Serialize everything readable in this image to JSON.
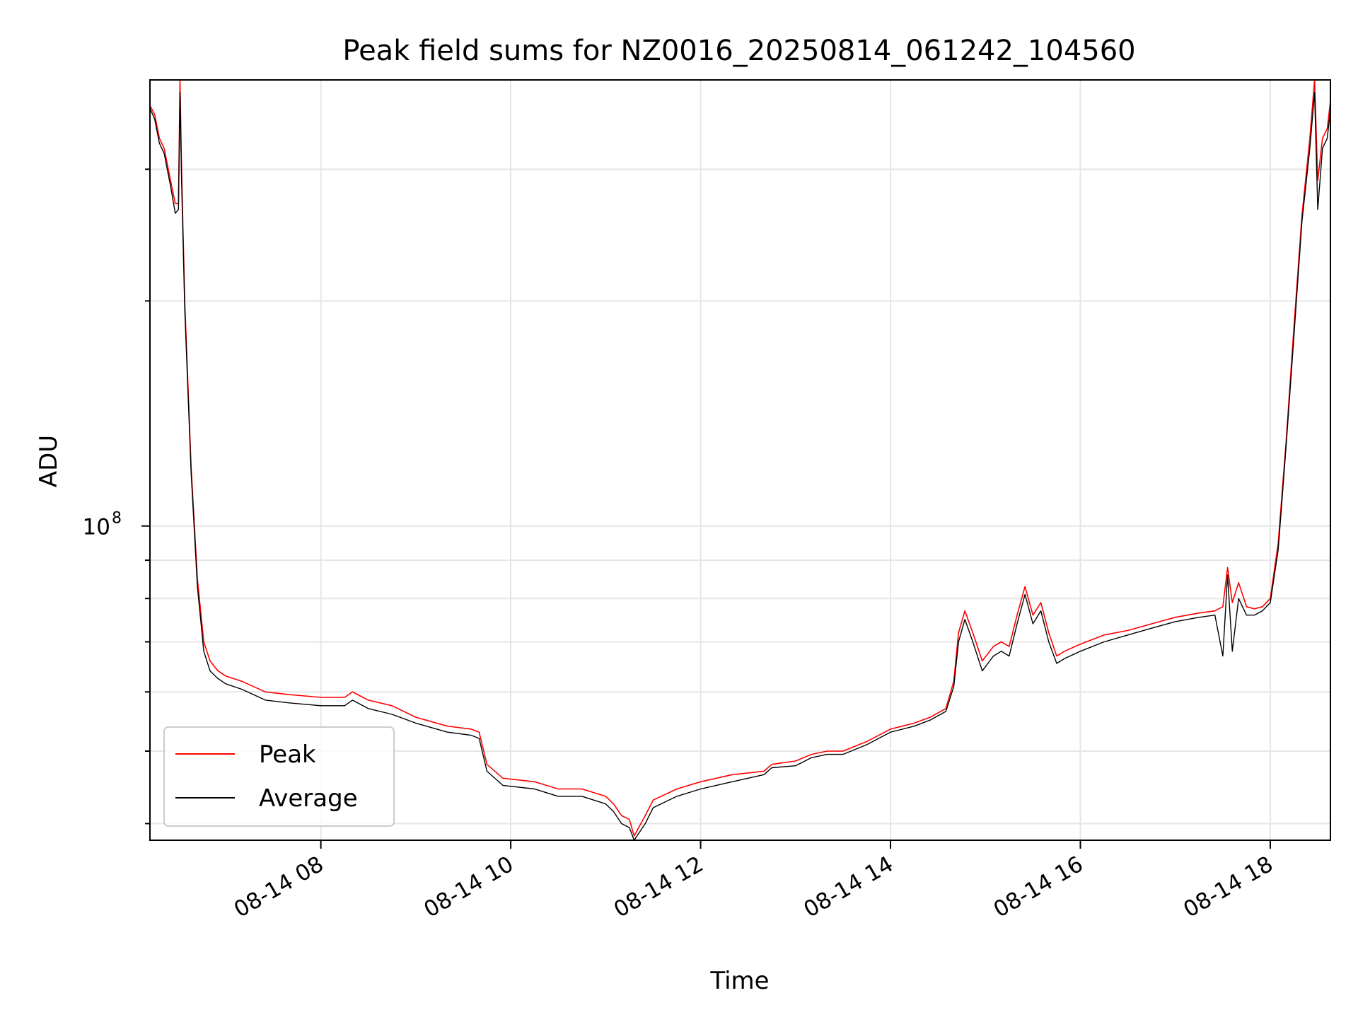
{
  "chart_data": {
    "type": "line",
    "title": "Peak field sums for NZ0016_20250814_061242_104560",
    "xlabel": "Time",
    "ylabel": "ADU",
    "x_scale": "time",
    "y_scale": "log",
    "xlim": [
      "2025-08-14 06:12",
      "2025-08-14 18:38"
    ],
    "ylim": [
      38000000,
      395000000
    ],
    "x_ticks": [
      {
        "value": "2025-08-14 08:00",
        "label": "08-14 08"
      },
      {
        "value": "2025-08-14 10:00",
        "label": "08-14 10"
      },
      {
        "value": "2025-08-14 12:00",
        "label": "08-14 12"
      },
      {
        "value": "2025-08-14 14:00",
        "label": "08-14 14"
      },
      {
        "value": "2025-08-14 16:00",
        "label": "08-14 16"
      },
      {
        "value": "2025-08-14 18:00",
        "label": "08-14 18"
      }
    ],
    "y_major_ticks": [
      {
        "value": 100000000,
        "base": "10",
        "exp": "8"
      }
    ],
    "y_minor_ticks": [
      40000000,
      50000000,
      60000000,
      70000000,
      80000000,
      90000000,
      200000000,
      300000000
    ],
    "grid": true,
    "legend_position": "lower-left",
    "series": [
      {
        "name": "Peak",
        "color": "#ff0000",
        "x": [
          "2025-08-14 06:12",
          "2025-08-14 06:15",
          "2025-08-14 06:18",
          "2025-08-14 06:21",
          "2025-08-14 06:25",
          "2025-08-14 06:28",
          "2025-08-14 06:30",
          "2025-08-14 06:31",
          "2025-08-14 06:32",
          "2025-08-14 06:34",
          "2025-08-14 06:38",
          "2025-08-14 06:42",
          "2025-08-14 06:46",
          "2025-08-14 06:50",
          "2025-08-14 06:55",
          "2025-08-14 07:00",
          "2025-08-14 07:10",
          "2025-08-14 07:25",
          "2025-08-14 07:40",
          "2025-08-14 08:00",
          "2025-08-14 08:15",
          "2025-08-14 08:20",
          "2025-08-14 08:30",
          "2025-08-14 08:45",
          "2025-08-14 09:00",
          "2025-08-14 09:20",
          "2025-08-14 09:35",
          "2025-08-14 09:40",
          "2025-08-14 09:45",
          "2025-08-14 09:55",
          "2025-08-14 10:15",
          "2025-08-14 10:30",
          "2025-08-14 10:45",
          "2025-08-14 11:00",
          "2025-08-14 11:05",
          "2025-08-14 11:10",
          "2025-08-14 11:15",
          "2025-08-14 11:18",
          "2025-08-14 11:25",
          "2025-08-14 11:30",
          "2025-08-14 11:45",
          "2025-08-14 12:00",
          "2025-08-14 12:20",
          "2025-08-14 12:40",
          "2025-08-14 12:45",
          "2025-08-14 13:00",
          "2025-08-14 13:10",
          "2025-08-14 13:20",
          "2025-08-14 13:30",
          "2025-08-14 13:45",
          "2025-08-14 14:00",
          "2025-08-14 14:15",
          "2025-08-14 14:25",
          "2025-08-14 14:35",
          "2025-08-14 14:40",
          "2025-08-14 14:43",
          "2025-08-14 14:47",
          "2025-08-14 14:52",
          "2025-08-14 14:58",
          "2025-08-14 15:05",
          "2025-08-14 15:10",
          "2025-08-14 15:15",
          "2025-08-14 15:20",
          "2025-08-14 15:25",
          "2025-08-14 15:30",
          "2025-08-14 15:35",
          "2025-08-14 15:40",
          "2025-08-14 15:45",
          "2025-08-14 15:50",
          "2025-08-14 16:00",
          "2025-08-14 16:15",
          "2025-08-14 16:30",
          "2025-08-14 16:45",
          "2025-08-14 17:00",
          "2025-08-14 17:15",
          "2025-08-14 17:25",
          "2025-08-14 17:30",
          "2025-08-14 17:33",
          "2025-08-14 17:36",
          "2025-08-14 17:40",
          "2025-08-14 17:45",
          "2025-08-14 17:50",
          "2025-08-14 17:55",
          "2025-08-14 18:00",
          "2025-08-14 18:05",
          "2025-08-14 18:10",
          "2025-08-14 18:15",
          "2025-08-14 18:20",
          "2025-08-14 18:25",
          "2025-08-14 18:28",
          "2025-08-14 18:30",
          "2025-08-14 18:33",
          "2025-08-14 18:36",
          "2025-08-14 18:38"
        ],
        "values": [
          365000000,
          355000000,
          330000000,
          320000000,
          290000000,
          270000000,
          270000000,
          395000000,
          300000000,
          200000000,
          120000000,
          85000000,
          70000000,
          66000000,
          64000000,
          63000000,
          62000000,
          60000000,
          59500000,
          59000000,
          59000000,
          60000000,
          58500000,
          57500000,
          55500000,
          54000000,
          53500000,
          53000000,
          48000000,
          46000000,
          45500000,
          44500000,
          44500000,
          43500000,
          42500000,
          41000000,
          40500000,
          38500000,
          41000000,
          43000000,
          44500000,
          45500000,
          46500000,
          47000000,
          48000000,
          48500000,
          49500000,
          50000000,
          50000000,
          51500000,
          53500000,
          54500000,
          55500000,
          57000000,
          62000000,
          72000000,
          77000000,
          72000000,
          66000000,
          69000000,
          70000000,
          69000000,
          76000000,
          83000000,
          76000000,
          79000000,
          72000000,
          67000000,
          68000000,
          69500000,
          71500000,
          72500000,
          74000000,
          75500000,
          76500000,
          77000000,
          78000000,
          88000000,
          79000000,
          84000000,
          78000000,
          77500000,
          78000000,
          80000000,
          95000000,
          130000000,
          185000000,
          260000000,
          330000000,
          395000000,
          290000000,
          330000000,
          340000000,
          370000000
        ]
      },
      {
        "name": "Average",
        "color": "#000000",
        "x": [
          "2025-08-14 06:12",
          "2025-08-14 06:15",
          "2025-08-14 06:18",
          "2025-08-14 06:21",
          "2025-08-14 06:25",
          "2025-08-14 06:28",
          "2025-08-14 06:30",
          "2025-08-14 06:31",
          "2025-08-14 06:32",
          "2025-08-14 06:34",
          "2025-08-14 06:38",
          "2025-08-14 06:42",
          "2025-08-14 06:46",
          "2025-08-14 06:50",
          "2025-08-14 06:55",
          "2025-08-14 07:00",
          "2025-08-14 07:10",
          "2025-08-14 07:25",
          "2025-08-14 07:40",
          "2025-08-14 08:00",
          "2025-08-14 08:15",
          "2025-08-14 08:20",
          "2025-08-14 08:30",
          "2025-08-14 08:45",
          "2025-08-14 09:00",
          "2025-08-14 09:20",
          "2025-08-14 09:35",
          "2025-08-14 09:40",
          "2025-08-14 09:45",
          "2025-08-14 09:55",
          "2025-08-14 10:15",
          "2025-08-14 10:30",
          "2025-08-14 10:45",
          "2025-08-14 11:00",
          "2025-08-14 11:05",
          "2025-08-14 11:10",
          "2025-08-14 11:15",
          "2025-08-14 11:18",
          "2025-08-14 11:25",
          "2025-08-14 11:30",
          "2025-08-14 11:45",
          "2025-08-14 12:00",
          "2025-08-14 12:20",
          "2025-08-14 12:40",
          "2025-08-14 12:45",
          "2025-08-14 13:00",
          "2025-08-14 13:10",
          "2025-08-14 13:20",
          "2025-08-14 13:30",
          "2025-08-14 13:45",
          "2025-08-14 14:00",
          "2025-08-14 14:15",
          "2025-08-14 14:25",
          "2025-08-14 14:35",
          "2025-08-14 14:40",
          "2025-08-14 14:43",
          "2025-08-14 14:47",
          "2025-08-14 14:52",
          "2025-08-14 14:58",
          "2025-08-14 15:05",
          "2025-08-14 15:10",
          "2025-08-14 15:15",
          "2025-08-14 15:20",
          "2025-08-14 15:25",
          "2025-08-14 15:30",
          "2025-08-14 15:35",
          "2025-08-14 15:40",
          "2025-08-14 15:45",
          "2025-08-14 15:50",
          "2025-08-14 16:00",
          "2025-08-14 16:15",
          "2025-08-14 16:30",
          "2025-08-14 16:45",
          "2025-08-14 17:00",
          "2025-08-14 17:15",
          "2025-08-14 17:25",
          "2025-08-14 17:30",
          "2025-08-14 17:33",
          "2025-08-14 17:36",
          "2025-08-14 17:40",
          "2025-08-14 17:45",
          "2025-08-14 17:50",
          "2025-08-14 17:55",
          "2025-08-14 18:00",
          "2025-08-14 18:05",
          "2025-08-14 18:10",
          "2025-08-14 18:15",
          "2025-08-14 18:20",
          "2025-08-14 18:25",
          "2025-08-14 18:28",
          "2025-08-14 18:30",
          "2025-08-14 18:33",
          "2025-08-14 18:36",
          "2025-08-14 18:38"
        ],
        "values": [
          362000000,
          350000000,
          325000000,
          315000000,
          285000000,
          262000000,
          265000000,
          380000000,
          290000000,
          195000000,
          118000000,
          83000000,
          68000000,
          64000000,
          62500000,
          61500000,
          60500000,
          58500000,
          58000000,
          57500000,
          57500000,
          58500000,
          57000000,
          56000000,
          54500000,
          53000000,
          52500000,
          52000000,
          47000000,
          45000000,
          44500000,
          43500000,
          43500000,
          42500000,
          41500000,
          40000000,
          39500000,
          38000000,
          40000000,
          42000000,
          43500000,
          44500000,
          45500000,
          46500000,
          47500000,
          47800000,
          49000000,
          49500000,
          49500000,
          51000000,
          53000000,
          54000000,
          55000000,
          56500000,
          61000000,
          70000000,
          75000000,
          70000000,
          64000000,
          67000000,
          68000000,
          67000000,
          74000000,
          81000000,
          74000000,
          77000000,
          70000000,
          65500000,
          66500000,
          68000000,
          70000000,
          71500000,
          73000000,
          74500000,
          75500000,
          76000000,
          67000000,
          86000000,
          68000000,
          80000000,
          76000000,
          76000000,
          77000000,
          79000000,
          93000000,
          128000000,
          180000000,
          255000000,
          320000000,
          380000000,
          265000000,
          320000000,
          330000000,
          360000000
        ]
      }
    ]
  }
}
